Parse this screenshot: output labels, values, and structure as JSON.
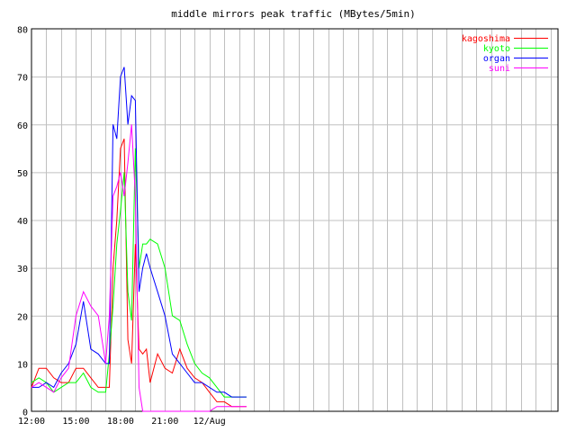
{
  "chart_data": {
    "type": "line",
    "title": "middle mirrors peak traffic (MBytes/5min)",
    "xlabel": "",
    "ylabel": "",
    "x_start": "12:00",
    "x_end_hours": 35.5,
    "xtick_labels": [
      {
        "h": 0,
        "label": "12:00"
      },
      {
        "h": 3,
        "label": "15:00"
      },
      {
        "h": 6,
        "label": "18:00"
      },
      {
        "h": 9,
        "label": "21:00"
      },
      {
        "h": 12,
        "label": "12/Aug"
      }
    ],
    "ylim": [
      0,
      80
    ],
    "yticks": [
      0,
      10,
      20,
      30,
      40,
      50,
      60,
      70,
      80
    ],
    "grid": true,
    "legend_position": "top-right",
    "x": [
      "12:00",
      "12:30",
      "13:00",
      "13:30",
      "14:00",
      "14:30",
      "15:00",
      "15:30",
      "16:00",
      "16:30",
      "17:00",
      "17:15",
      "17:30",
      "17:45",
      "18:00",
      "18:15",
      "18:30",
      "18:45",
      "19:00",
      "19:15",
      "19:30",
      "19:45",
      "20:00",
      "20:30",
      "21:00",
      "21:30",
      "22:00",
      "22:30",
      "23:00",
      "23:30",
      "00:00",
      "00:30",
      "01:00",
      "01:30",
      "02:00",
      "02:30"
    ],
    "series": [
      {
        "name": "kagoshima",
        "color": "#ff0000",
        "values": [
          5,
          9,
          9,
          7,
          6,
          6,
          9,
          9,
          7,
          5,
          5,
          5,
          30,
          40,
          55,
          57,
          15,
          10,
          35,
          13,
          12,
          13,
          6,
          12,
          9,
          8,
          13,
          9,
          7,
          6,
          4,
          2,
          2,
          1,
          1,
          1
        ]
      },
      {
        "name": "kyoto",
        "color": "#00ff00",
        "values": [
          6,
          7,
          6,
          4,
          5,
          6,
          6,
          8,
          5,
          4,
          4,
          12,
          22,
          35,
          42,
          50,
          25,
          19,
          55,
          30,
          35,
          35,
          36,
          35,
          30,
          20,
          19,
          14,
          10,
          8,
          7,
          5,
          3,
          3,
          3,
          3
        ]
      },
      {
        "name": "organ",
        "color": "#0000ff",
        "values": [
          5,
          5,
          6,
          5,
          8,
          10,
          14,
          23,
          13,
          12,
          10,
          10,
          60,
          57,
          70,
          72,
          60,
          66,
          65,
          25,
          30,
          33,
          30,
          25,
          20,
          12,
          10,
          8,
          6,
          6,
          5,
          4,
          4,
          3,
          3,
          3
        ]
      },
      {
        "name": "suni",
        "color": "#ff00ff",
        "values": [
          5,
          6,
          5,
          4,
          7,
          9,
          20,
          25,
          22,
          20,
          10,
          20,
          45,
          47,
          50,
          45,
          52,
          60,
          45,
          5,
          0,
          0,
          0,
          0,
          0,
          0,
          0,
          0,
          0,
          0,
          0,
          1,
          1,
          1,
          1,
          1
        ]
      }
    ]
  }
}
